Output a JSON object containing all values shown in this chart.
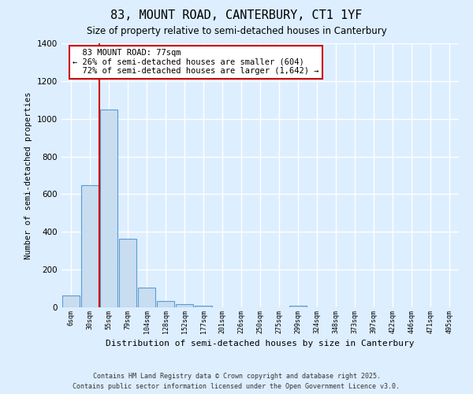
{
  "title": "83, MOUNT ROAD, CANTERBURY, CT1 1YF",
  "subtitle": "Size of property relative to semi-detached houses in Canterbury",
  "xlabel": "Distribution of semi-detached houses by size in Canterbury",
  "ylabel": "Number of semi-detached properties",
  "bin_labels": [
    "6sqm",
    "30sqm",
    "55sqm",
    "79sqm",
    "104sqm",
    "128sqm",
    "152sqm",
    "177sqm",
    "201sqm",
    "226sqm",
    "250sqm",
    "275sqm",
    "299sqm",
    "324sqm",
    "348sqm",
    "373sqm",
    "397sqm",
    "422sqm",
    "446sqm",
    "471sqm",
    "495sqm"
  ],
  "bin_values": [
    63,
    648,
    1047,
    365,
    105,
    35,
    15,
    8,
    0,
    0,
    0,
    0,
    10,
    0,
    0,
    0,
    0,
    0,
    0,
    0,
    0
  ],
  "bar_color": "#c9ddf0",
  "bar_edge_color": "#5b9bd5",
  "marker_label": "83 MOUNT ROAD: 77sqm",
  "marker_smaller_pct": "26%",
  "marker_smaller_n": "604",
  "marker_larger_pct": "72%",
  "marker_larger_n": "1,642",
  "marker_color": "#cc0000",
  "annotation_box_color": "#cc0000",
  "ylim": [
    0,
    1400
  ],
  "yticks": [
    0,
    200,
    400,
    600,
    800,
    1000,
    1200,
    1400
  ],
  "bg_color": "#ddeeff",
  "grid_color": "#ffffff",
  "fig_bg_color": "#ddeeff",
  "footer_line1": "Contains HM Land Registry data © Crown copyright and database right 2025.",
  "footer_line2": "Contains public sector information licensed under the Open Government Licence v3.0."
}
